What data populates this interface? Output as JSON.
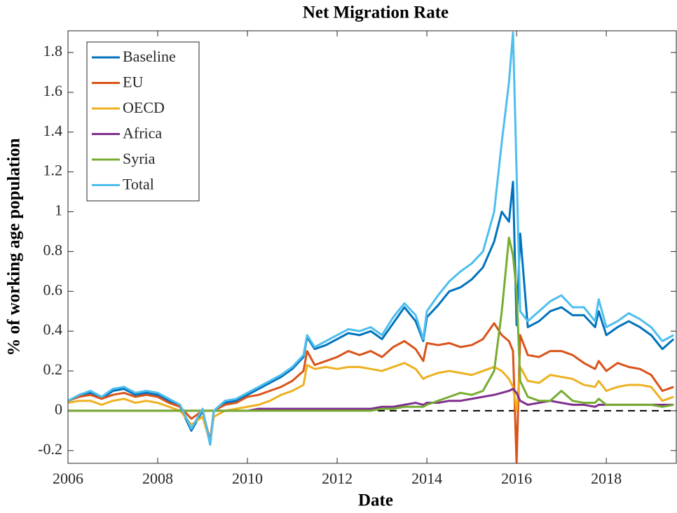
{
  "chart_data": {
    "type": "line",
    "title": "Net Migration Rate",
    "xlabel": "Date",
    "ylabel": "% of working age population",
    "x": [
      2006,
      2006.25,
      2006.5,
      2006.75,
      2007,
      2007.25,
      2007.5,
      2007.75,
      2008,
      2008.25,
      2008.5,
      2008.75,
      2009,
      2009.17,
      2009.25,
      2009.5,
      2009.75,
      2010,
      2010.25,
      2010.5,
      2010.75,
      2011,
      2011.25,
      2011.33,
      2011.5,
      2011.75,
      2012,
      2012.25,
      2012.5,
      2012.75,
      2013,
      2013.25,
      2013.5,
      2013.75,
      2013.92,
      2014,
      2014.25,
      2014.5,
      2014.75,
      2015,
      2015.25,
      2015.5,
      2015.67,
      2015.83,
      2015.92,
      2016,
      2016.08,
      2016.25,
      2016.5,
      2016.75,
      2017,
      2017.25,
      2017.5,
      2017.75,
      2017.83,
      2018,
      2018.25,
      2018.5,
      2018.75,
      2019,
      2019.25,
      2019.5
    ],
    "series": [
      {
        "name": "Baseline",
        "color": "#0072BD",
        "values": [
          0.05,
          0.07,
          0.09,
          0.06,
          0.1,
          0.11,
          0.08,
          0.09,
          0.08,
          0.05,
          0.02,
          -0.1,
          0.0,
          -0.17,
          0.0,
          0.04,
          0.05,
          0.08,
          0.11,
          0.14,
          0.17,
          0.21,
          0.27,
          0.37,
          0.31,
          0.33,
          0.36,
          0.39,
          0.38,
          0.4,
          0.36,
          0.44,
          0.52,
          0.45,
          0.35,
          0.47,
          0.53,
          0.6,
          0.62,
          0.66,
          0.72,
          0.85,
          1.0,
          0.95,
          1.15,
          0.43,
          0.89,
          0.42,
          0.45,
          0.5,
          0.52,
          0.48,
          0.48,
          0.42,
          0.5,
          0.38,
          0.42,
          0.45,
          0.42,
          0.38,
          0.31,
          0.36
        ]
      },
      {
        "name": "EU",
        "color": "#D95319",
        "values": [
          0.05,
          0.07,
          0.08,
          0.06,
          0.08,
          0.09,
          0.07,
          0.08,
          0.07,
          0.04,
          0.02,
          -0.04,
          0.0,
          -0.15,
          0.0,
          0.03,
          0.04,
          0.07,
          0.08,
          0.1,
          0.12,
          0.15,
          0.2,
          0.3,
          0.23,
          0.25,
          0.27,
          0.3,
          0.28,
          0.3,
          0.27,
          0.32,
          0.35,
          0.31,
          0.25,
          0.34,
          0.33,
          0.34,
          0.32,
          0.33,
          0.36,
          0.44,
          0.38,
          0.35,
          0.3,
          -0.26,
          0.38,
          0.28,
          0.27,
          0.3,
          0.3,
          0.28,
          0.24,
          0.21,
          0.25,
          0.2,
          0.24,
          0.22,
          0.21,
          0.18,
          0.1,
          0.12
        ]
      },
      {
        "name": "OECD",
        "color": "#EDB120",
        "values": [
          0.04,
          0.05,
          0.05,
          0.03,
          0.05,
          0.06,
          0.04,
          0.05,
          0.04,
          0.02,
          0.0,
          -0.07,
          -0.03,
          -0.16,
          -0.03,
          0.0,
          0.01,
          0.02,
          0.03,
          0.05,
          0.08,
          0.1,
          0.13,
          0.23,
          0.21,
          0.22,
          0.21,
          0.22,
          0.22,
          0.21,
          0.2,
          0.22,
          0.24,
          0.21,
          0.16,
          0.17,
          0.19,
          0.2,
          0.19,
          0.18,
          0.2,
          0.22,
          0.2,
          0.16,
          0.12,
          0.0,
          0.22,
          0.15,
          0.14,
          0.18,
          0.17,
          0.16,
          0.13,
          0.12,
          0.15,
          0.1,
          0.12,
          0.13,
          0.13,
          0.12,
          0.05,
          0.07
        ]
      },
      {
        "name": "Africa",
        "color": "#7E2F8E",
        "values": [
          0.0,
          0.0,
          0.0,
          0.0,
          0.0,
          0.0,
          0.0,
          0.0,
          0.0,
          0.0,
          0.0,
          0.0,
          0.0,
          0.0,
          0.0,
          0.0,
          0.0,
          0.0,
          0.01,
          0.01,
          0.01,
          0.01,
          0.01,
          0.01,
          0.01,
          0.01,
          0.01,
          0.01,
          0.01,
          0.01,
          0.02,
          0.02,
          0.03,
          0.04,
          0.03,
          0.04,
          0.04,
          0.05,
          0.05,
          0.06,
          0.07,
          0.08,
          0.09,
          0.1,
          0.11,
          0.09,
          0.05,
          0.03,
          0.04,
          0.05,
          0.04,
          0.03,
          0.03,
          0.02,
          0.03,
          0.03,
          0.03,
          0.03,
          0.03,
          0.03,
          0.03,
          0.03
        ]
      },
      {
        "name": "Syria",
        "color": "#77AC30",
        "values": [
          0,
          0,
          0,
          0,
          0,
          0,
          0,
          0,
          0,
          0,
          0,
          0,
          0,
          0,
          0,
          0,
          0,
          0,
          0,
          0,
          0,
          0,
          0,
          0,
          0,
          0,
          0,
          0,
          0,
          0,
          0.01,
          0.01,
          0.02,
          0.02,
          0.02,
          0.03,
          0.05,
          0.07,
          0.09,
          0.08,
          0.1,
          0.2,
          0.5,
          0.87,
          0.78,
          0.6,
          0.15,
          0.07,
          0.05,
          0.05,
          0.1,
          0.05,
          0.04,
          0.04,
          0.06,
          0.03,
          0.03,
          0.03,
          0.03,
          0.03,
          0.02,
          0.03
        ]
      },
      {
        "name": "Total",
        "color": "#4DBEEE",
        "values": [
          0.05,
          0.08,
          0.1,
          0.07,
          0.11,
          0.12,
          0.09,
          0.1,
          0.09,
          0.06,
          0.03,
          -0.09,
          0.01,
          -0.17,
          0.0,
          0.05,
          0.06,
          0.09,
          0.12,
          0.15,
          0.18,
          0.22,
          0.28,
          0.38,
          0.32,
          0.35,
          0.38,
          0.41,
          0.4,
          0.42,
          0.38,
          0.47,
          0.54,
          0.48,
          0.36,
          0.5,
          0.58,
          0.65,
          0.7,
          0.74,
          0.8,
          1.0,
          1.35,
          1.65,
          1.9,
          1.2,
          0.5,
          0.45,
          0.5,
          0.55,
          0.58,
          0.52,
          0.52,
          0.45,
          0.56,
          0.42,
          0.45,
          0.49,
          0.46,
          0.42,
          0.35,
          0.38
        ]
      }
    ],
    "xlim": [
      2006,
      2019.56
    ],
    "xticks": [
      2006,
      2008,
      2010,
      2012,
      2014,
      2016,
      2018
    ],
    "ylim": [
      -0.264,
      1.909
    ],
    "yticks": [
      -0.2,
      0,
      0.2,
      0.4,
      0.6,
      0.8,
      1,
      1.2,
      1.4,
      1.6,
      1.8
    ],
    "reference_line": 0,
    "grid": false,
    "legend": "northwest"
  }
}
